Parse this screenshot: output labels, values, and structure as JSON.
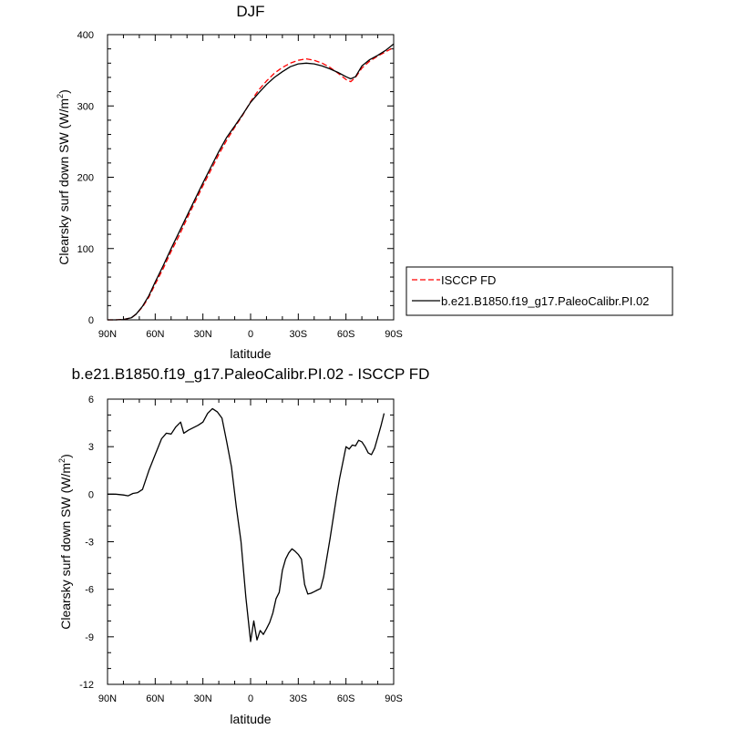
{
  "chart_data": [
    {
      "type": "line",
      "title": "DJF",
      "xlabel": "latitude",
      "ylabel": "Clearsky surf down SW (W/m",
      "ylabel_sup": "2",
      "ylabel_end": ")",
      "xlim": [
        90,
        -90
      ],
      "ylim": [
        0,
        400
      ],
      "xticks": [
        90,
        60,
        30,
        0,
        -30,
        -60,
        -90
      ],
      "xticklabels": [
        "90N",
        "60N",
        "30N",
        "0",
        "30S",
        "60S",
        "90S"
      ],
      "yticks": [
        0,
        100,
        200,
        300,
        400
      ],
      "yticklabels": [
        "0",
        "100",
        "200",
        "300",
        "400"
      ],
      "legend_position": "outside-right",
      "series": [
        {
          "name": "ISCCP FD",
          "color": "#ff0000",
          "style": "dashed",
          "points": [
            [
              90,
              0
            ],
            [
              85,
              0
            ],
            [
              80,
              0.5
            ],
            [
              75,
              3
            ],
            [
              72,
              8
            ],
            [
              68,
              18
            ],
            [
              64,
              32
            ],
            [
              60,
              50
            ],
            [
              55,
              72
            ],
            [
              50,
              96
            ],
            [
              45,
              118
            ],
            [
              40,
              142
            ],
            [
              35,
              165
            ],
            [
              30,
              188
            ],
            [
              25,
              210
            ],
            [
              20,
              232
            ],
            [
              15,
              252
            ],
            [
              10,
              270
            ],
            [
              5,
              287
            ],
            [
              0,
              306
            ],
            [
              -5,
              322
            ],
            [
              -10,
              335
            ],
            [
              -15,
              346
            ],
            [
              -20,
              354
            ],
            [
              -25,
              360
            ],
            [
              -30,
              364
            ],
            [
              -35,
              366
            ],
            [
              -40,
              364
            ],
            [
              -45,
              360
            ],
            [
              -50,
              354
            ],
            [
              -55,
              346
            ],
            [
              -60,
              337
            ],
            [
              -63,
              334
            ],
            [
              -66,
              340
            ],
            [
              -70,
              353
            ],
            [
              -75,
              363
            ],
            [
              -80,
              370
            ],
            [
              -85,
              376
            ],
            [
              -90,
              382
            ]
          ]
        },
        {
          "name": "b.e21.B1850.f19_g17.PaleoCalibr.PI.02",
          "color": "#000000",
          "style": "solid",
          "points": [
            [
              90,
              0
            ],
            [
              85,
              0
            ],
            [
              80,
              0.5
            ],
            [
              75,
              3
            ],
            [
              72,
              8
            ],
            [
              68,
              19
            ],
            [
              64,
              34
            ],
            [
              60,
              53
            ],
            [
              55,
              76
            ],
            [
              50,
              100
            ],
            [
              45,
              123
            ],
            [
              40,
              146
            ],
            [
              35,
              169
            ],
            [
              30,
              192
            ],
            [
              25,
              214
            ],
            [
              20,
              236
            ],
            [
              15,
              256
            ],
            [
              10,
              272
            ],
            [
              5,
              288
            ],
            [
              0,
              305
            ],
            [
              -5,
              318
            ],
            [
              -10,
              330
            ],
            [
              -15,
              340
            ],
            [
              -20,
              348
            ],
            [
              -25,
              355
            ],
            [
              -30,
              359
            ],
            [
              -35,
              360
            ],
            [
              -40,
              359
            ],
            [
              -45,
              356
            ],
            [
              -50,
              352
            ],
            [
              -55,
              347
            ],
            [
              -60,
              341
            ],
            [
              -63,
              338
            ],
            [
              -66,
              341
            ],
            [
              -70,
              356
            ],
            [
              -75,
              365
            ],
            [
              -80,
              371
            ],
            [
              -85,
              378
            ],
            [
              -90,
              387
            ]
          ]
        }
      ]
    },
    {
      "type": "line",
      "title": "b.e21.B1850.f19_g17.PaleoCalibr.PI.02 - ISCCP FD",
      "xlabel": "latitude",
      "ylabel": "Clearsky surf down SW (W/m",
      "ylabel_sup": "2",
      "ylabel_end": ")",
      "xlim": [
        90,
        -90
      ],
      "ylim": [
        -12,
        6
      ],
      "xticks": [
        90,
        60,
        30,
        0,
        -30,
        -60,
        -90
      ],
      "xticklabels": [
        "90N",
        "60N",
        "30N",
        "0",
        "30S",
        "60S",
        "90S"
      ],
      "yticks": [
        -12,
        -9,
        -6,
        -3,
        0,
        3,
        6
      ],
      "yticklabels": [
        "-12",
        "-9",
        "-6",
        "-3",
        "0",
        "3",
        "6"
      ],
      "series": [
        {
          "color": "#000000",
          "style": "solid",
          "points": [
            [
              90,
              0
            ],
            [
              85,
              0
            ],
            [
              80,
              -0.05
            ],
            [
              77,
              -0.1
            ],
            [
              74,
              0.05
            ],
            [
              71,
              0.1
            ],
            [
              68,
              0.3
            ],
            [
              64,
              1.5
            ],
            [
              60,
              2.5
            ],
            [
              56,
              3.5
            ],
            [
              53,
              3.85
            ],
            [
              50,
              3.8
            ],
            [
              47,
              4.25
            ],
            [
              44,
              4.55
            ],
            [
              42,
              3.85
            ],
            [
              39,
              4.05
            ],
            [
              36,
              4.2
            ],
            [
              33,
              4.35
            ],
            [
              30,
              4.55
            ],
            [
              27,
              5.1
            ],
            [
              24,
              5.4
            ],
            [
              21,
              5.2
            ],
            [
              18,
              4.8
            ],
            [
              15,
              3.3
            ],
            [
              12,
              1.7
            ],
            [
              9,
              -0.8
            ],
            [
              6,
              -3
            ],
            [
              3,
              -6.5
            ],
            [
              0,
              -9.3
            ],
            [
              -2,
              -8
            ],
            [
              -4,
              -9.2
            ],
            [
              -6,
              -8.6
            ],
            [
              -8,
              -8.85
            ],
            [
              -10,
              -8.5
            ],
            [
              -12,
              -8.1
            ],
            [
              -14,
              -7.5
            ],
            [
              -16,
              -6.6
            ],
            [
              -18,
              -6.2
            ],
            [
              -20,
              -4.8
            ],
            [
              -22,
              -4.1
            ],
            [
              -24,
              -3.7
            ],
            [
              -26,
              -3.45
            ],
            [
              -28,
              -3.6
            ],
            [
              -30,
              -3.8
            ],
            [
              -32,
              -4.1
            ],
            [
              -34,
              -5.7
            ],
            [
              -36,
              -6.3
            ],
            [
              -38,
              -6.25
            ],
            [
              -40,
              -6.15
            ],
            [
              -42,
              -6.05
            ],
            [
              -44,
              -5.95
            ],
            [
              -46,
              -5.2
            ],
            [
              -48,
              -4
            ],
            [
              -50,
              -2.8
            ],
            [
              -52,
              -1.5
            ],
            [
              -54,
              -0.2
            ],
            [
              -56,
              1
            ],
            [
              -58,
              2
            ],
            [
              -60,
              3
            ],
            [
              -62,
              2.85
            ],
            [
              -64,
              3.1
            ],
            [
              -66,
              3.05
            ],
            [
              -68,
              3.4
            ],
            [
              -70,
              3.3
            ],
            [
              -72,
              3
            ],
            [
              -74,
              2.6
            ],
            [
              -76,
              2.5
            ],
            [
              -78,
              2.9
            ],
            [
              -80,
              3.6
            ],
            [
              -82,
              4.3
            ],
            [
              -84,
              5.1
            ]
          ]
        }
      ]
    }
  ]
}
